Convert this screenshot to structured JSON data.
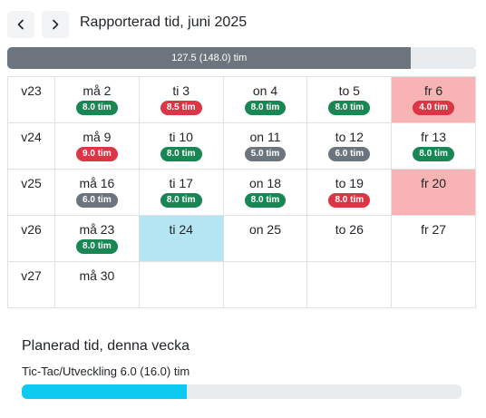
{
  "header": {
    "title": "Rapporterad tid, juni 2025",
    "prev_icon": "chevron-left-icon",
    "next_icon": "chevron-right-icon"
  },
  "reported_progress": {
    "label": "127.5 (148.0) tim",
    "reported": 127.5,
    "total": 148.0,
    "color": "#6c757d"
  },
  "calendar": {
    "weeks": [
      {
        "week": "v23",
        "days": [
          {
            "label": "må 2",
            "badge": "8.0 tim",
            "badge_color": "green",
            "highlight": ""
          },
          {
            "label": "ti 3",
            "badge": "8.5 tim",
            "badge_color": "red",
            "highlight": ""
          },
          {
            "label": "on 4",
            "badge": "8.0 tim",
            "badge_color": "green",
            "highlight": ""
          },
          {
            "label": "to 5",
            "badge": "8.0 tim",
            "badge_color": "green",
            "highlight": ""
          },
          {
            "label": "fr 6",
            "badge": "4.0 tim",
            "badge_color": "red",
            "highlight": "red"
          }
        ]
      },
      {
        "week": "v24",
        "days": [
          {
            "label": "må 9",
            "badge": "9.0 tim",
            "badge_color": "red",
            "highlight": ""
          },
          {
            "label": "ti 10",
            "badge": "8.0 tim",
            "badge_color": "green",
            "highlight": ""
          },
          {
            "label": "on 11",
            "badge": "5.0 tim",
            "badge_color": "gray",
            "highlight": ""
          },
          {
            "label": "to 12",
            "badge": "6.0 tim",
            "badge_color": "gray",
            "highlight": ""
          },
          {
            "label": "fr 13",
            "badge": "8.0 tim",
            "badge_color": "green",
            "highlight": ""
          }
        ]
      },
      {
        "week": "v25",
        "days": [
          {
            "label": "må 16",
            "badge": "6.0 tim",
            "badge_color": "gray",
            "highlight": ""
          },
          {
            "label": "ti 17",
            "badge": "8.0 tim",
            "badge_color": "green",
            "highlight": ""
          },
          {
            "label": "on 18",
            "badge": "8.0 tim",
            "badge_color": "green",
            "highlight": ""
          },
          {
            "label": "to 19",
            "badge": "8.0 tim",
            "badge_color": "red",
            "highlight": ""
          },
          {
            "label": "fr 20",
            "badge": "",
            "badge_color": "",
            "highlight": "red"
          }
        ]
      },
      {
        "week": "v26",
        "days": [
          {
            "label": "må 23",
            "badge": "8.0 tim",
            "badge_color": "green",
            "highlight": ""
          },
          {
            "label": "ti 24",
            "badge": "",
            "badge_color": "",
            "highlight": "blue"
          },
          {
            "label": "on 25",
            "badge": "",
            "badge_color": "",
            "highlight": ""
          },
          {
            "label": "to 26",
            "badge": "",
            "badge_color": "",
            "highlight": ""
          },
          {
            "label": "fr 27",
            "badge": "",
            "badge_color": "",
            "highlight": ""
          }
        ]
      },
      {
        "week": "v27",
        "days": [
          {
            "label": "må 30",
            "badge": "",
            "badge_color": "",
            "highlight": ""
          },
          {
            "label": "",
            "badge": "",
            "badge_color": "",
            "highlight": ""
          },
          {
            "label": "",
            "badge": "",
            "badge_color": "",
            "highlight": ""
          },
          {
            "label": "",
            "badge": "",
            "badge_color": "",
            "highlight": ""
          },
          {
            "label": "",
            "badge": "",
            "badge_color": "",
            "highlight": ""
          }
        ]
      }
    ],
    "colors": {
      "green": "#198754",
      "red": "#dc3545",
      "gray": "#6c757d",
      "red_cell": "#f8b4b4",
      "blue_cell": "#b3e5f2"
    }
  },
  "planned": {
    "title": "Planerad tid, denna vecka",
    "items": [
      {
        "label": "Tic-Tac/Utveckling 6.0 (16.0) tim",
        "planned": 6.0,
        "total": 16.0,
        "color": "#0dcaf0"
      }
    ]
  }
}
